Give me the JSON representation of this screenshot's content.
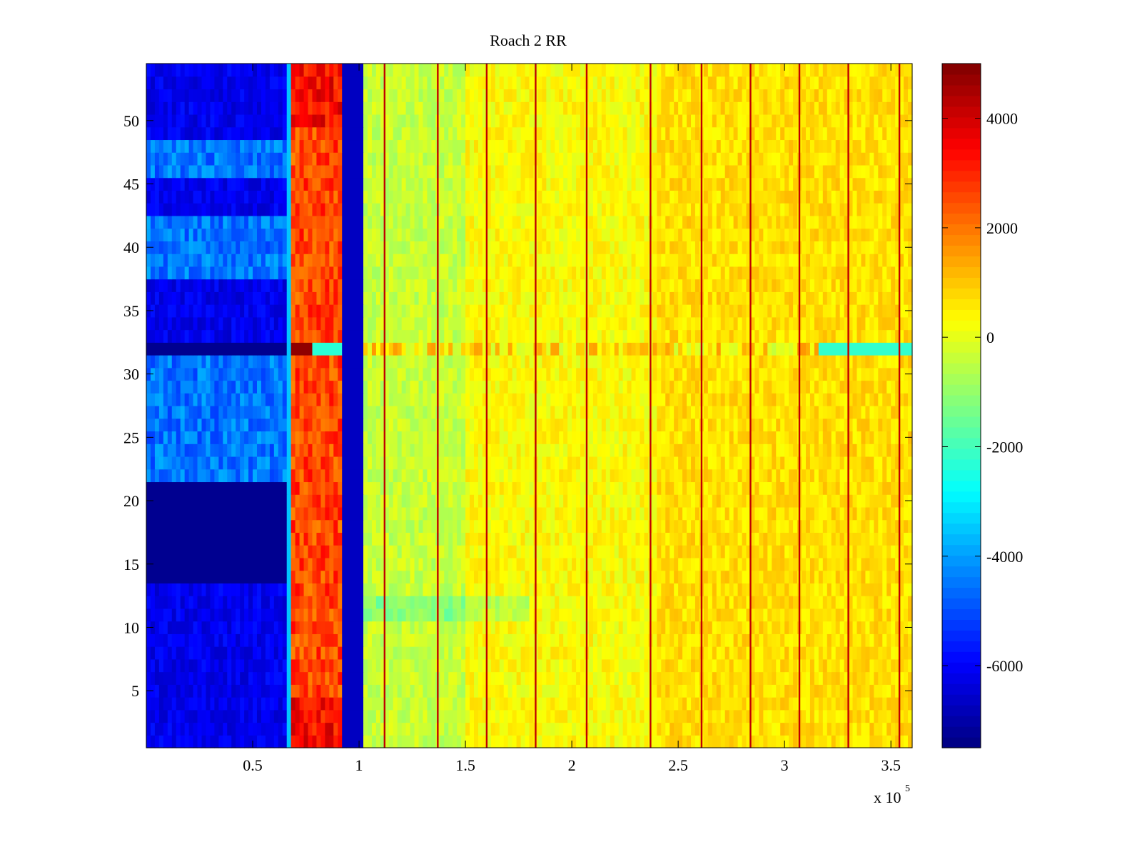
{
  "chart_data": {
    "type": "heatmap",
    "title": "Roach 2 RR",
    "xlabel": "",
    "ylabel": "",
    "x_multiplier_label": "x 10",
    "x_multiplier_exponent": "5",
    "xlim": [
      0,
      3.6
    ],
    "ylim": [
      0.5,
      54.5
    ],
    "x_ticks": [
      0.5,
      1,
      1.5,
      2,
      2.5,
      3,
      3.5
    ],
    "x_tick_labels": [
      "0.5",
      "1",
      "1.5",
      "2",
      "2.5",
      "3",
      "3.5"
    ],
    "y_ticks": [
      5,
      10,
      15,
      20,
      25,
      30,
      35,
      40,
      45,
      50
    ],
    "y_tick_labels": [
      "5",
      "10",
      "15",
      "20",
      "25",
      "30",
      "35",
      "40",
      "45",
      "50"
    ],
    "rows": 54,
    "colorbar": {
      "colormap": "jet",
      "clim": [
        -7500,
        5000
      ],
      "ticks": [
        -6000,
        -4000,
        -2000,
        0,
        2000,
        4000
      ],
      "tick_labels": [
        "-6000",
        "-4000",
        "-2000",
        "0",
        "2000",
        "4000"
      ]
    },
    "x_bands": [
      {
        "x_start": 0.0,
        "x_end": 0.66,
        "value": -6800
      },
      {
        "x_start": 0.66,
        "x_end": 0.68,
        "value": -3500
      },
      {
        "x_start": 0.68,
        "x_end": 0.93,
        "value": 2600
      },
      {
        "x_start": 0.93,
        "x_end": 1.03,
        "value": -6700
      },
      {
        "x_start": 1.03,
        "x_end": 1.5,
        "value": -400
      },
      {
        "x_start": 1.5,
        "x_end": 2.4,
        "value": 300
      },
      {
        "x_start": 2.4,
        "x_end": 3.6,
        "value": 700
      }
    ],
    "spike_lines_x": [
      1.12,
      1.37,
      1.6,
      1.83,
      2.07,
      2.37,
      2.61,
      2.84,
      3.07,
      3.3,
      3.54
    ],
    "anomalous_row": 32,
    "notes": "Per-row values approximate; rows 14-21 and 32 strongly negative in the first band; row 32 shows dark-red segment near x=0.7e5"
  }
}
